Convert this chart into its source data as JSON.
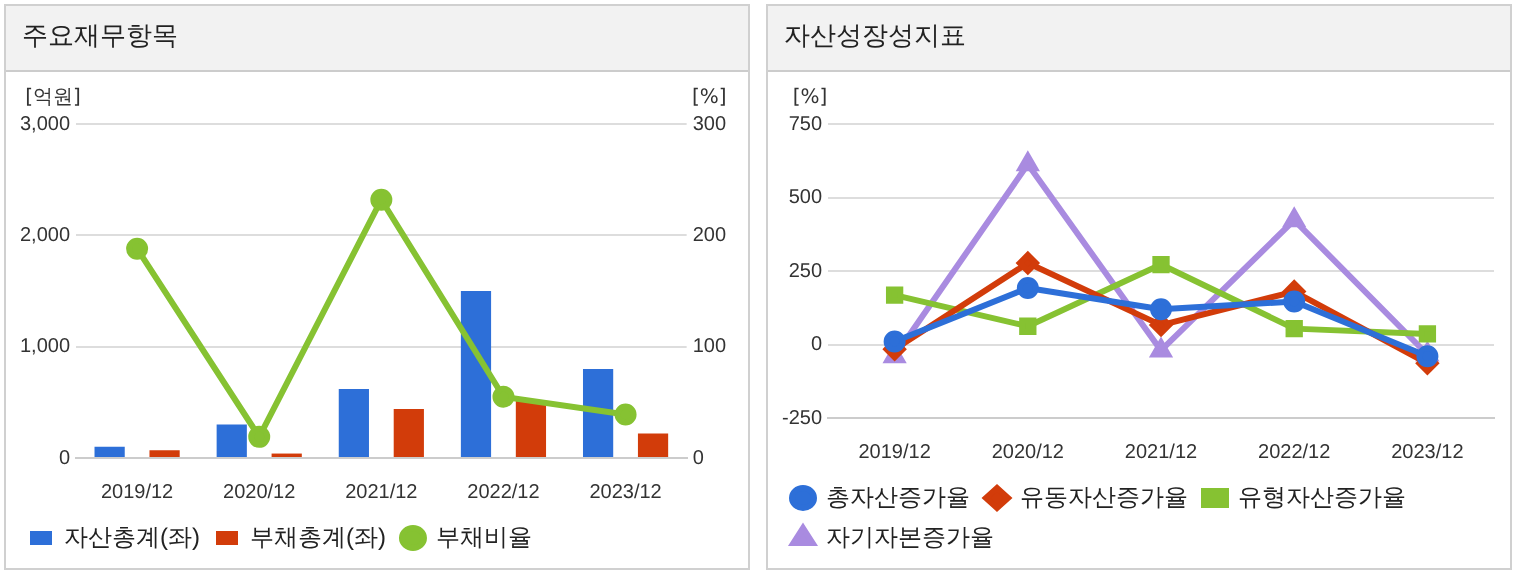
{
  "chart_data": [
    {
      "type": "bar",
      "title": "주요재무항목",
      "ylabel": "[억원]",
      "y2label": "[%]",
      "categories": [
        "2019/12",
        "2020/12",
        "2021/12",
        "2022/12",
        "2023/12"
      ],
      "series": [
        {
          "name": "자산총계(좌)",
          "color": "#2d6fd8",
          "values": [
            100,
            300,
            620,
            1500,
            800
          ]
        },
        {
          "name": "부채총계(좌)",
          "color": "#d23c0a",
          "values": [
            70,
            40,
            440,
            520,
            220
          ]
        },
        {
          "name": "부채비율",
          "type": "line",
          "axis": "y2",
          "color": "#86c232",
          "values": [
            188,
            19,
            232,
            55,
            39
          ],
          "marker": "circle"
        }
      ],
      "ylim": [
        0,
        3000
      ],
      "yticks": [
        {
          "value": 0,
          "label": "0"
        },
        {
          "value": 1000,
          "label": "1,000"
        },
        {
          "value": 2000,
          "label": "2,000"
        },
        {
          "value": 3000,
          "label": "3,000"
        }
      ],
      "y2lim": [
        0,
        300
      ],
      "y2ticks": [
        0,
        100,
        200,
        300
      ],
      "grid": "y",
      "legend": "bottom"
    },
    {
      "type": "line",
      "title": "자산성장성지표",
      "ylabel": "[%]",
      "categories": [
        "2019/12",
        "2020/12",
        "2021/12",
        "2022/12",
        "2023/12"
      ],
      "series": [
        {
          "name": "총자산증가율",
          "color": "#2d6fd8",
          "values": [
            10,
            192,
            120,
            146,
            -40
          ],
          "marker": "circle"
        },
        {
          "name": "유동자산증가율",
          "color": "#d23c0a",
          "values": [
            -16,
            277,
            66,
            180,
            -64
          ],
          "marker": "diamond"
        },
        {
          "name": "유형자산증가율",
          "color": "#86c232",
          "values": [
            168,
            62,
            272,
            54,
            36
          ],
          "marker": "square"
        },
        {
          "name": "자기자본증가율",
          "color": "#a98be0",
          "values": [
            -40,
            613,
            -20,
            423,
            -34
          ],
          "marker": "triangle"
        }
      ],
      "ylim": [
        -250,
        750
      ],
      "yticks": [
        -250,
        0,
        250,
        500,
        750
      ],
      "grid": "y",
      "legend": "bottom"
    }
  ]
}
